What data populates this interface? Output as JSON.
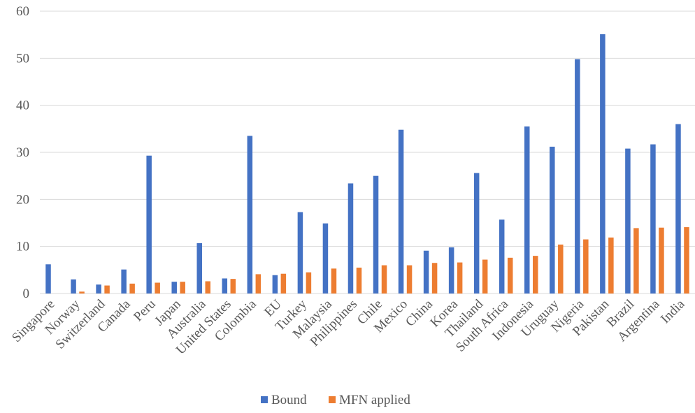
{
  "chart_data": {
    "type": "bar",
    "title": "",
    "xlabel": "",
    "ylabel": "",
    "ylim": [
      0,
      60
    ],
    "yticks": [
      0,
      10,
      20,
      30,
      40,
      50,
      60
    ],
    "grid": true,
    "legend_position": "bottom",
    "categories": [
      "Singapore",
      "Norway",
      "Switzerland",
      "Canada",
      "Peru",
      "Japan",
      "Australia",
      "United States",
      "Colombia",
      "EU",
      "Turkey",
      "Malaysia",
      "Philippines",
      "Chile",
      "Mexico",
      "China",
      "Korea",
      "Thailand",
      "South Africa",
      "Indonesia",
      "Uruguay",
      "Nigeria",
      "Pakistan",
      "Brazil",
      "Argentina",
      "India"
    ],
    "series": [
      {
        "name": "Bound",
        "color": "#4472c4",
        "values": [
          6.2,
          3.0,
          1.9,
          5.1,
          29.3,
          2.5,
          10.7,
          3.2,
          33.5,
          3.9,
          17.3,
          14.9,
          23.4,
          25.0,
          34.8,
          9.1,
          9.8,
          25.6,
          15.7,
          35.5,
          31.2,
          49.8,
          55.1,
          30.8,
          31.7,
          36.0
        ]
      },
      {
        "name": "MFN applied",
        "color": "#ed7d31",
        "values": [
          0,
          0.4,
          1.7,
          2.1,
          2.3,
          2.5,
          2.6,
          3.1,
          4.1,
          4.2,
          4.5,
          5.3,
          5.5,
          6.0,
          6.0,
          6.5,
          6.6,
          7.2,
          7.6,
          8.0,
          10.4,
          11.5,
          11.9,
          13.9,
          14.0,
          14.1
        ]
      }
    ]
  }
}
